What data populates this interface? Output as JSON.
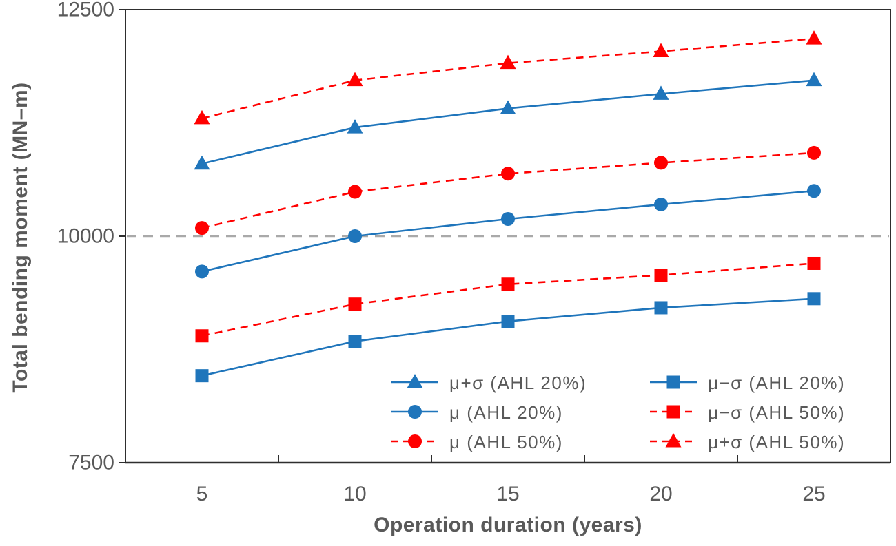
{
  "figure": {
    "background": "#ffffff"
  },
  "chart_data": {
    "type": "line",
    "title": "",
    "xlabel": "Operation duration (years)",
    "ylabel": "Total bending moment (MN–m)",
    "categories": [
      5,
      10,
      15,
      20,
      25
    ],
    "xlim": [
      2.5,
      27.5
    ],
    "ylim": [
      7500,
      12500
    ],
    "yticks": [
      7500,
      10000,
      12500
    ],
    "grid": false,
    "reference_line": {
      "y": 10000,
      "style": "dashed",
      "color": "#a9a9a9"
    },
    "legend_position": "inside-bottom-right, 2 columns, no border",
    "colors": {
      "blue": "#1f75bb",
      "red": "#ff0000",
      "axis_text": "#595959",
      "frame": "#2e2e2e",
      "reference": "#a9a9a9"
    },
    "series": [
      {
        "id": "mu-plus-sigma-ahl20",
        "name": "μ+σ (AHL 20%)",
        "color": "blue",
        "line": "solid",
        "marker": "triangle",
        "values": [
          10800,
          11200,
          11410,
          11570,
          11720
        ]
      },
      {
        "id": "mu-ahl20",
        "name": "μ (AHL 20%)",
        "color": "blue",
        "line": "solid",
        "marker": "circle",
        "values": [
          9610,
          10000,
          10190,
          10350,
          10500
        ]
      },
      {
        "id": "mu-ahl50",
        "name": "μ (AHL 50%)",
        "color": "red",
        "line": "dashed",
        "marker": "circle",
        "values": [
          10090,
          10490,
          10690,
          10810,
          10920
        ]
      },
      {
        "id": "mu-minus-sigma-ahl20",
        "name": "μ−σ (AHL 20%)",
        "color": "blue",
        "line": "solid",
        "marker": "square",
        "values": [
          8460,
          8840,
          9060,
          9210,
          9310
        ]
      },
      {
        "id": "mu-minus-sigma-ahl50",
        "name": "μ−σ (AHL 50%)",
        "color": "red",
        "line": "dashed",
        "marker": "square",
        "values": [
          8900,
          9250,
          9470,
          9570,
          9700
        ]
      },
      {
        "id": "mu-plus-sigma-ahl50",
        "name": "μ+σ (AHL 50%)",
        "color": "red",
        "line": "dashed",
        "marker": "triangle",
        "values": [
          11300,
          11720,
          11910,
          12040,
          12180
        ]
      }
    ],
    "legend_columns": [
      [
        0,
        1,
        2
      ],
      [
        3,
        4,
        5
      ]
    ]
  }
}
